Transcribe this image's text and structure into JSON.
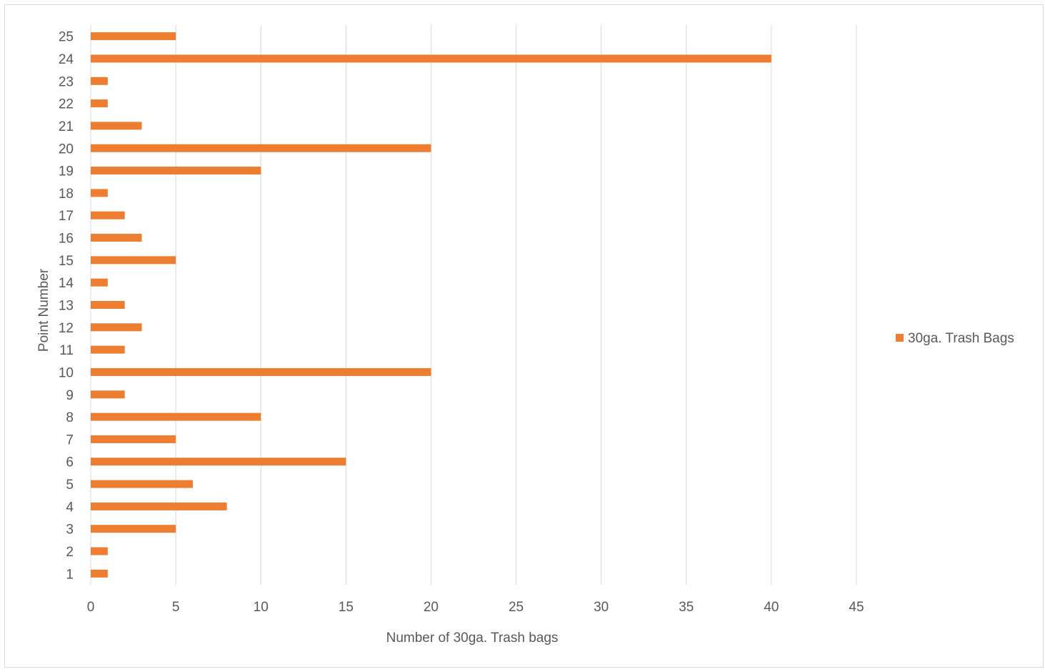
{
  "chart_data": {
    "type": "bar",
    "orientation": "horizontal",
    "categories": [
      "1",
      "2",
      "3",
      "4",
      "5",
      "6",
      "7",
      "8",
      "9",
      "10",
      "11",
      "12",
      "13",
      "14",
      "15",
      "16",
      "17",
      "18",
      "19",
      "20",
      "21",
      "22",
      "23",
      "24",
      "25"
    ],
    "series": [
      {
        "name": "30ga. Trash Bags",
        "color": "#ED7D31",
        "values": [
          1,
          1,
          5,
          8,
          6,
          15,
          5,
          10,
          2,
          20,
          2,
          3,
          2,
          1,
          5,
          3,
          2,
          1,
          10,
          20,
          3,
          1,
          1,
          40,
          5
        ]
      }
    ],
    "xlabel": "Number  of 30ga. Trash bags",
    "ylabel": "Point Number",
    "xlim": [
      0,
      45
    ],
    "xticks": [
      "0",
      "5",
      "10",
      "15",
      "20",
      "25",
      "30",
      "35",
      "40",
      "45"
    ],
    "grid": "vertical",
    "legend": "right"
  }
}
